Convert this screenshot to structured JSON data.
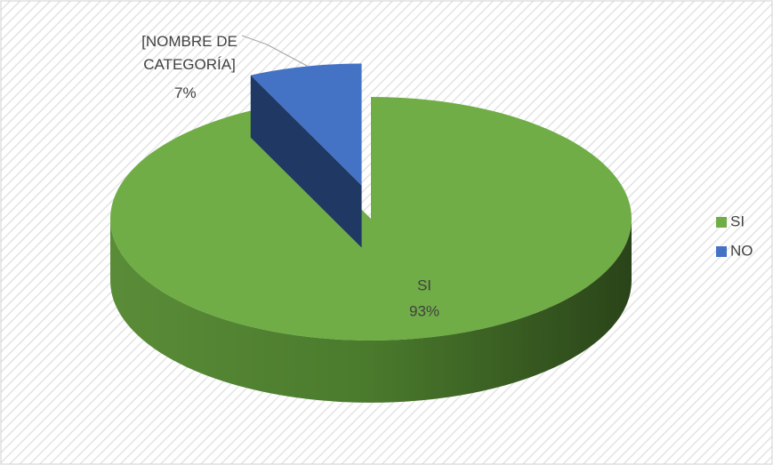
{
  "chart_data": {
    "type": "pie3d",
    "categories": [
      "SI",
      "NO"
    ],
    "values": [
      93,
      7
    ],
    "value_labels": [
      "93%",
      "7%"
    ],
    "colors": [
      "#70ad47",
      "#4472c4"
    ],
    "exploded_label": "[NOMBRE DE CATEGORÍA]",
    "legend": "right"
  }
}
